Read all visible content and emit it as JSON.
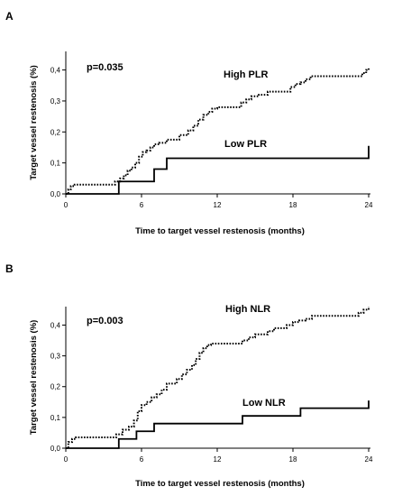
{
  "chart_data": [
    {
      "type": "line",
      "step": true,
      "panel_label": "A",
      "annotation": "p=0.035",
      "xlabel": "Time to target vessel restenosis (months)",
      "ylabel": "Target vessel restenosis (%)",
      "xlim": [
        0,
        24
      ],
      "ylim": [
        0,
        0.46
      ],
      "xticks": [
        "0",
        "6",
        "12",
        "18",
        "24"
      ],
      "xtick_values": [
        0,
        6,
        12,
        18,
        24
      ],
      "yticks": [
        "0,0",
        "0,1",
        "0,2",
        "0,3",
        "0,4"
      ],
      "ytick_values": [
        0,
        0.1,
        0.2,
        0.3,
        0.4
      ],
      "grid": false,
      "legend": "none",
      "series": [
        {
          "name": "High PLR",
          "style": "dotted",
          "x": [
            0,
            0.2,
            0.4,
            0.7,
            3.9,
            4.3,
            4.6,
            4.9,
            5.2,
            5.5,
            5.8,
            6.1,
            6.4,
            6.7,
            7.0,
            7.4,
            8.0,
            9.0,
            9.7,
            10.1,
            10.5,
            10.9,
            11.3,
            11.6,
            12.0,
            13.9,
            14.3,
            14.7,
            15.3,
            16.0,
            17.8,
            18.2,
            18.6,
            19.0,
            19.4,
            23.5,
            23.8,
            24.0
          ],
          "y": [
            0.0,
            0.015,
            0.025,
            0.03,
            0.04,
            0.05,
            0.06,
            0.075,
            0.085,
            0.1,
            0.12,
            0.135,
            0.14,
            0.15,
            0.16,
            0.165,
            0.175,
            0.19,
            0.205,
            0.22,
            0.24,
            0.255,
            0.265,
            0.275,
            0.28,
            0.295,
            0.305,
            0.315,
            0.32,
            0.33,
            0.345,
            0.355,
            0.36,
            0.37,
            0.38,
            0.39,
            0.4,
            0.405
          ]
        },
        {
          "name": "Low PLR",
          "style": "solid",
          "x": [
            0,
            4.2,
            7.0,
            8.0,
            24.0,
            24.0
          ],
          "y": [
            0.0,
            0.04,
            0.08,
            0.115,
            0.115,
            0.155
          ]
        }
      ]
    },
    {
      "type": "line",
      "step": true,
      "panel_label": "B",
      "annotation": "p=0.003",
      "xlabel": "Time to target vessel restenosis (months)",
      "ylabel": "Target vessel restenosis (%)",
      "xlim": [
        0,
        24
      ],
      "ylim": [
        0,
        0.46
      ],
      "xticks": [
        "0",
        "6",
        "12",
        "18",
        "24"
      ],
      "xtick_values": [
        0,
        6,
        12,
        18,
        24
      ],
      "yticks": [
        "0,0",
        "0,1",
        "0,2",
        "0,3",
        "0,4"
      ],
      "ytick_values": [
        0,
        0.1,
        0.2,
        0.3,
        0.4
      ],
      "grid": false,
      "legend": "none",
      "series": [
        {
          "name": "High NLR",
          "style": "dotted",
          "x": [
            0,
            0.2,
            0.5,
            0.8,
            4.0,
            4.5,
            5.0,
            5.4,
            5.7,
            6.0,
            6.4,
            6.8,
            7.2,
            7.6,
            8.0,
            8.8,
            9.2,
            9.6,
            10.0,
            10.3,
            10.6,
            10.9,
            11.2,
            11.5,
            12.0,
            14.0,
            14.5,
            15.0,
            16.0,
            16.5,
            17.5,
            18.0,
            18.5,
            19.0,
            19.5,
            23.2,
            23.6,
            24.0
          ],
          "y": [
            0.0,
            0.02,
            0.03,
            0.035,
            0.045,
            0.06,
            0.07,
            0.09,
            0.12,
            0.14,
            0.15,
            0.165,
            0.175,
            0.19,
            0.21,
            0.225,
            0.24,
            0.255,
            0.27,
            0.29,
            0.31,
            0.325,
            0.335,
            0.34,
            0.34,
            0.35,
            0.36,
            0.37,
            0.38,
            0.39,
            0.4,
            0.41,
            0.415,
            0.42,
            0.43,
            0.44,
            0.45,
            0.46
          ]
        },
        {
          "name": "Low NLR",
          "style": "solid",
          "x": [
            0,
            4.2,
            5.6,
            7.0,
            14.0,
            18.6,
            24.0,
            24.0
          ],
          "y": [
            0.0,
            0.03,
            0.055,
            0.08,
            0.105,
            0.13,
            0.13,
            0.155
          ]
        }
      ]
    }
  ]
}
